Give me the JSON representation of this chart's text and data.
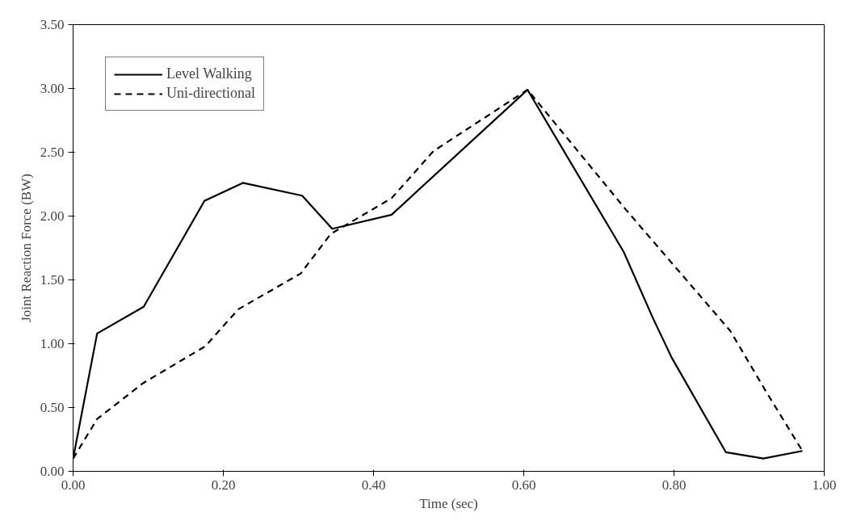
{
  "chart_data": {
    "type": "line",
    "xlabel": "Time (sec)",
    "ylabel": "Joint Reaction Force (BW)",
    "xlim": [
      0,
      1
    ],
    "xticks": [
      {
        "value": 0,
        "label": "0.00"
      },
      {
        "value": 0.2,
        "label": "0.20"
      },
      {
        "value": 0.4,
        "label": "0.40"
      },
      {
        "value": 0.6,
        "label": "0.60"
      },
      {
        "value": 0.8,
        "label": "0.80"
      },
      {
        "value": 1,
        "label": "1.00"
      }
    ],
    "ylim": [
      0,
      3.5
    ],
    "yticks": [
      {
        "value": 0,
        "label": "0.00"
      },
      {
        "value": 0.5,
        "label": "0.50"
      },
      {
        "value": 1,
        "label": "1.00"
      },
      {
        "value": 1.5,
        "label": "1.50"
      },
      {
        "value": 2,
        "label": "2.00"
      },
      {
        "value": 2.5,
        "label": "2.50"
      },
      {
        "value": 3,
        "label": "3.00"
      },
      {
        "value": 3.5,
        "label": "3.50"
      }
    ],
    "grid": false,
    "legend": "top left",
    "marker": "none",
    "series": [
      {
        "name": "Level Walking",
        "color": "#000000",
        "line_style": "solid",
        "x": [
          0,
          0.032,
          0.094,
          0.175,
          0.226,
          0.305,
          0.345,
          0.424,
          0.605,
          0.733,
          0.772,
          0.797,
          0.869,
          0.919,
          0.971
        ],
        "values": [
          0.1,
          1.08,
          1.29,
          2.12,
          2.26,
          2.16,
          1.9,
          2.01,
          2.99,
          1.72,
          1.2,
          0.89,
          0.15,
          0.1,
          0.16
        ]
      },
      {
        "name": "Uni-directional",
        "color": "#000000",
        "line_style": "dashed",
        "x": [
          0,
          0.032,
          0.093,
          0.176,
          0.22,
          0.303,
          0.343,
          0.424,
          0.48,
          0.605,
          0.736,
          0.875,
          0.921,
          0.971
        ],
        "values": [
          0.1,
          0.41,
          0.69,
          0.98,
          1.27,
          1.55,
          1.86,
          2.14,
          2.51,
          2.99,
          2.05,
          1.1,
          0.64,
          0.16
        ]
      }
    ]
  }
}
